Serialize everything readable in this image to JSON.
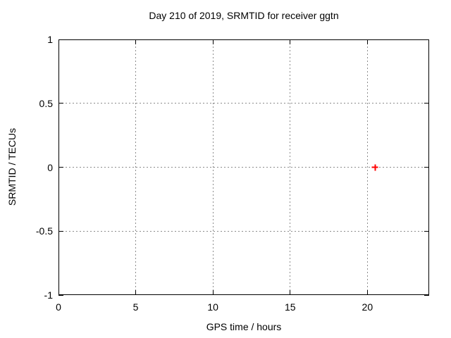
{
  "chart_data": {
    "type": "scatter",
    "title": "Day 210 of 2019, SRMTID for receiver ggtn",
    "xlabel": "GPS time / hours",
    "ylabel": "SRMTID / TECUs",
    "xlim": [
      0,
      24
    ],
    "ylim": [
      -1,
      1
    ],
    "xticks": [
      0,
      5,
      10,
      15,
      20
    ],
    "yticks": [
      -1,
      -0.5,
      0,
      0.5,
      1
    ],
    "grid": true,
    "grid_style": "dotted",
    "legend": "none",
    "series": [
      {
        "name": "SRMTID",
        "marker": "plus",
        "color": "#ff0000",
        "points": [
          {
            "x": 20.5,
            "y": 0
          }
        ]
      }
    ]
  },
  "colors": {
    "background": "#ffffff",
    "plot_border": "#000000",
    "grid": "#8c8c8c",
    "text": "#000000",
    "point": "#ff0000"
  }
}
